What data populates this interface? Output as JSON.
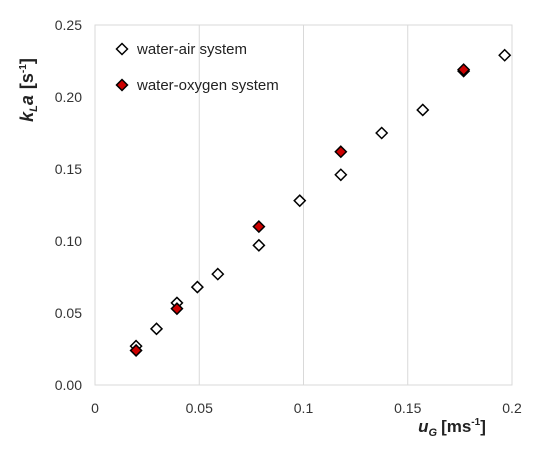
{
  "chart_data": {
    "type": "scatter",
    "xlim": [
      0,
      0.2
    ],
    "ylim": [
      0,
      0.25
    ],
    "x_ticks": [
      "0",
      "0.05",
      "0.1",
      "0.15",
      "0.2"
    ],
    "y_ticks": [
      "0.00",
      "0.05",
      "0.10",
      "0.15",
      "0.20",
      "0.25"
    ],
    "grid": "vertical",
    "legend_position": "top-left",
    "xlabel": {
      "main": "u",
      "sub": "G",
      "unit": "[ms",
      "sup": "-1",
      "close": "]"
    },
    "ylabel": {
      "main": "k",
      "sub": "L",
      "main2": "a",
      "unit": "[s",
      "sup": "-1",
      "close": "]"
    },
    "series": [
      {
        "name": "water-air system",
        "fill": "#ffffff",
        "stroke": "#000000",
        "x": [
          0.0197,
          0.0295,
          0.0393,
          0.0491,
          0.0589,
          0.0786,
          0.0982,
          0.1179,
          0.1375,
          0.1572,
          0.1768,
          0.1965
        ],
        "y": [
          0.027,
          0.039,
          0.057,
          0.068,
          0.077,
          0.097,
          0.128,
          0.146,
          0.175,
          0.191,
          0.218,
          0.229
        ]
      },
      {
        "name": "water-oxygen system",
        "fill": "#cc0000",
        "stroke": "#000000",
        "x": [
          0.0197,
          0.0393,
          0.0786,
          0.1179,
          0.1768
        ],
        "y": [
          0.024,
          0.053,
          0.11,
          0.162,
          0.219
        ]
      }
    ]
  }
}
